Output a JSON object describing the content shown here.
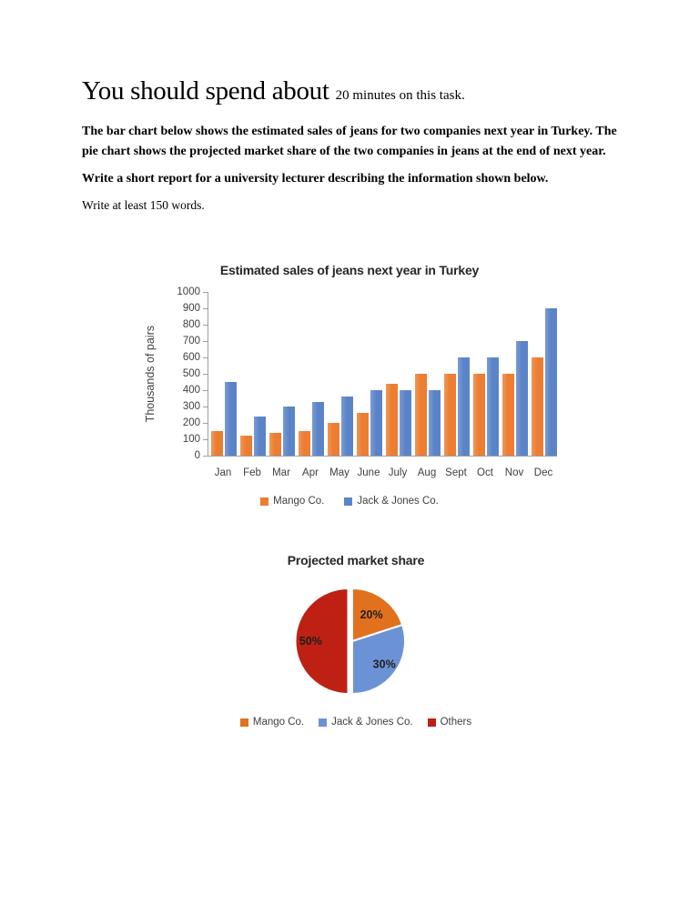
{
  "document": {
    "heading": {
      "large": "You should spend about",
      "small": "20 minutes on this task."
    },
    "paragraphs": {
      "brief": "The bar chart below shows the estimated sales of jeans for two companies next year in Turkey. The pie chart shows the projected market share of the two companies in jeans at the end of next year.",
      "task": "Write a short report for a university lecturer describing the information shown below.",
      "note": "Write at least 150 words."
    }
  },
  "colors": {
    "mango_orange": "#ED7D31",
    "jack_jones_blue": "#5B84C8",
    "others_red": "#BE2114",
    "pie_orange": "#E2711D",
    "pie_blue": "#6C92D6",
    "axis_gray": "#9aa0a6",
    "chart_text": "#404040",
    "title_dark": "#262626"
  },
  "chart_data": [
    {
      "type": "bar",
      "title": "Estimated sales of jeans next year in Turkey",
      "xlabel": "",
      "ylabel": "Thousands of pairs",
      "categories": [
        "Jan",
        "Feb",
        "Mar",
        "Apr",
        "May",
        "June",
        "July",
        "Aug",
        "Sept",
        "Oct",
        "Nov",
        "Dec"
      ],
      "series": [
        {
          "name": "Mango Co.",
          "color_key": "mango_orange",
          "values": [
            150,
            120,
            140,
            150,
            200,
            260,
            440,
            500,
            500,
            500,
            500,
            600
          ]
        },
        {
          "name": "Jack & Jones Co.",
          "color_key": "jack_jones_blue",
          "values": [
            450,
            240,
            300,
            330,
            360,
            400,
            400,
            400,
            600,
            600,
            700,
            900
          ]
        }
      ],
      "ylim": [
        0,
        1000
      ],
      "yticks": [
        0,
        100,
        200,
        300,
        400,
        500,
        600,
        700,
        800,
        900,
        1000
      ],
      "grid": false,
      "legend_position": "bottom"
    },
    {
      "type": "pie",
      "title": "Projected market share",
      "slices": [
        {
          "label": "Mango Co.",
          "value": 20,
          "display": "20%",
          "color_key": "pie_orange",
          "exploded": false
        },
        {
          "label": "Jack & Jones Co.",
          "value": 30,
          "display": "30%",
          "color_key": "pie_blue",
          "exploded": false
        },
        {
          "label": "Others",
          "value": 50,
          "display": "50%",
          "color_key": "others_red",
          "exploded": true
        }
      ],
      "legend_position": "bottom"
    }
  ]
}
